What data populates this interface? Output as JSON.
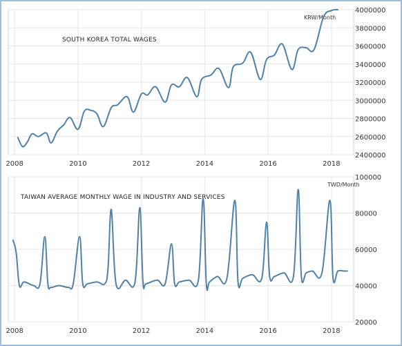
{
  "chart_data": [
    {
      "type": "line",
      "title": "SOUTH KOREA TOTAL WAGES",
      "unit": "KRW/Month",
      "x_ticks": [
        "2008",
        "2010",
        "2012",
        "2014",
        "2016",
        "2018"
      ],
      "y_ticks": [
        "2400000",
        "2600000",
        "2800000",
        "3000000",
        "3200000",
        "3400000",
        "3600000",
        "3800000",
        "4000000"
      ],
      "xlim": [
        2007.8,
        2018.7
      ],
      "ylim": [
        2400000,
        4000000
      ],
      "grid": true,
      "series": [
        {
          "x": [
            2008.1,
            2008.25,
            2008.4,
            2008.55,
            2008.75,
            2009.0,
            2009.15,
            2009.35,
            2009.55,
            2009.75,
            2010.0,
            2010.2,
            2010.4,
            2010.6,
            2010.8,
            2011.05,
            2011.25,
            2011.55,
            2011.75,
            2012.0,
            2012.2,
            2012.45,
            2012.75,
            2012.95,
            2013.2,
            2013.45,
            2013.75,
            2013.9,
            2014.2,
            2014.45,
            2014.75,
            2014.9,
            2015.2,
            2015.45,
            2015.75,
            2015.95,
            2016.2,
            2016.45,
            2016.75,
            2016.95,
            2017.2,
            2017.45,
            2017.75,
            2018.0,
            2018.2
          ],
          "y": [
            2590000,
            2490000,
            2540000,
            2630000,
            2600000,
            2640000,
            2530000,
            2660000,
            2730000,
            2810000,
            2680000,
            2880000,
            2890000,
            2850000,
            2710000,
            2920000,
            2950000,
            3040000,
            2870000,
            3070000,
            3060000,
            3150000,
            2980000,
            3170000,
            3150000,
            3250000,
            3040000,
            3230000,
            3280000,
            3350000,
            3140000,
            3370000,
            3410000,
            3530000,
            3230000,
            3450000,
            3500000,
            3620000,
            3340000,
            3560000,
            3580000,
            3560000,
            3920000,
            3990000,
            4000000
          ]
        }
      ]
    },
    {
      "type": "line",
      "title": "TAIWAN AVERAGE MONTHLY WAGE IN INDUSTRY AND SERVICES",
      "unit": "TWD/Month",
      "x_ticks": [
        "2008",
        "2010",
        "2012",
        "2014",
        "2016",
        "2018"
      ],
      "y_ticks": [
        "20000",
        "40000",
        "60000",
        "80000",
        "100000"
      ],
      "xlim": [
        2007.8,
        2018.7
      ],
      "ylim": [
        20000,
        100000
      ],
      "grid": true,
      "series": [
        {
          "x": [
            2007.95,
            2008.05,
            2008.15,
            2008.3,
            2008.6,
            2008.8,
            2008.95,
            2009.05,
            2009.15,
            2009.4,
            2009.7,
            2009.85,
            2010.05,
            2010.15,
            2010.3,
            2010.6,
            2010.85,
            2010.95,
            2011.05,
            2011.2,
            2011.5,
            2011.8,
            2011.95,
            2012.05,
            2012.15,
            2012.5,
            2012.75,
            2012.95,
            2013.05,
            2013.2,
            2013.5,
            2013.8,
            2013.95,
            2014.05,
            2014.15,
            2014.4,
            2014.7,
            2014.95,
            2015.05,
            2015.2,
            2015.5,
            2015.8,
            2015.95,
            2016.05,
            2016.2,
            2016.5,
            2016.8,
            2016.95,
            2017.05,
            2017.2,
            2017.4,
            2017.7,
            2017.95,
            2018.05,
            2018.2,
            2018.4,
            2018.5
          ],
          "y": [
            65000,
            58000,
            40000,
            42000,
            40000,
            41000,
            67000,
            41000,
            39000,
            40000,
            39000,
            41000,
            67000,
            41000,
            41000,
            42000,
            41000,
            50000,
            82000,
            41000,
            43000,
            42000,
            83000,
            42000,
            41000,
            43000,
            41000,
            63000,
            41000,
            42000,
            43000,
            43000,
            88000,
            41000,
            42000,
            45000,
            44000,
            87000,
            42000,
            44000,
            46000,
            44000,
            75000,
            45000,
            45000,
            47000,
            45000,
            93000,
            45000,
            47000,
            48000,
            47000,
            87000,
            44000,
            48000,
            48000,
            48000
          ]
        }
      ]
    }
  ]
}
